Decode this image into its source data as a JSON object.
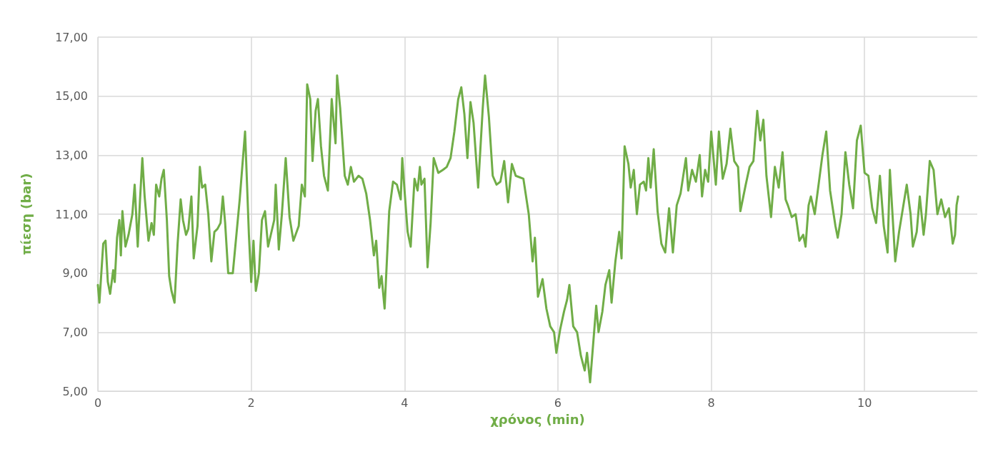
{
  "chart_data": {
    "type": "line",
    "xlabel": "χρόνος (min)",
    "ylabel": "πίεση (bar)",
    "xlim": [
      0,
      11.47
    ],
    "xticks": [
      0,
      2,
      4,
      6,
      8,
      10
    ],
    "ylim": [
      5,
      17
    ],
    "yticks": [
      {
        "value": 5,
        "label": "5,00"
      },
      {
        "value": 7,
        "label": "7,00"
      },
      {
        "value": 9,
        "label": "9,00"
      },
      {
        "value": 11,
        "label": "11,00"
      },
      {
        "value": 13,
        "label": "13,00"
      },
      {
        "value": 15,
        "label": "15,00"
      },
      {
        "value": 17,
        "label": "17,00"
      }
    ],
    "grid": true,
    "marker": "none",
    "line_style": "solid",
    "series": [
      {
        "color": "#70ad47",
        "x": [
          0,
          0.02,
          0.07,
          0.1,
          0.13,
          0.16,
          0.2,
          0.22,
          0.25,
          0.28,
          0.3,
          0.32,
          0.36,
          0.4,
          0.45,
          0.48,
          0.52,
          0.55,
          0.58,
          0.61,
          0.66,
          0.7,
          0.73,
          0.76,
          0.8,
          0.83,
          0.86,
          0.9,
          0.93,
          0.96,
          1.0,
          1.04,
          1.08,
          1.11,
          1.15,
          1.18,
          1.22,
          1.25,
          1.3,
          1.33,
          1.36,
          1.4,
          1.44,
          1.48,
          1.52,
          1.56,
          1.6,
          1.63,
          1.66,
          1.7,
          1.76,
          1.85,
          1.92,
          1.97,
          2.0,
          2.03,
          2.06,
          2.1,
          2.14,
          2.18,
          2.22,
          2.3,
          2.32,
          2.36,
          2.4,
          2.45,
          2.5,
          2.55,
          2.62,
          2.66,
          2.7,
          2.73,
          2.77,
          2.8,
          2.84,
          2.87,
          2.91,
          2.95,
          3.0,
          3.05,
          3.1,
          3.12,
          3.16,
          3.22,
          3.26,
          3.3,
          3.34,
          3.4,
          3.45,
          3.5,
          3.55,
          3.6,
          3.63,
          3.67,
          3.7,
          3.74,
          3.8,
          3.85,
          3.9,
          3.95,
          3.97,
          4.0,
          4.04,
          4.08,
          4.13,
          4.17,
          4.2,
          4.22,
          4.26,
          4.3,
          4.34,
          4.38,
          4.44,
          4.5,
          4.55,
          4.6,
          4.65,
          4.7,
          4.74,
          4.78,
          4.82,
          4.86,
          4.9,
          4.96,
          5.02,
          5.05,
          5.1,
          5.15,
          5.2,
          5.25,
          5.3,
          5.35,
          5.4,
          5.45,
          5.55,
          5.62,
          5.67,
          5.7,
          5.74,
          5.8,
          5.85,
          5.9,
          5.95,
          5.98,
          6.03,
          6.08,
          6.12,
          6.15,
          6.2,
          6.25,
          6.3,
          6.35,
          6.38,
          6.42,
          6.5,
          6.53,
          6.58,
          6.62,
          6.67,
          6.7,
          6.75,
          6.8,
          6.83,
          6.87,
          6.92,
          6.95,
          6.99,
          7.03,
          7.07,
          7.12,
          7.15,
          7.18,
          7.21,
          7.25,
          7.3,
          7.35,
          7.4,
          7.45,
          7.5,
          7.55,
          7.6,
          7.67,
          7.7,
          7.75,
          7.8,
          7.85,
          7.88,
          7.92,
          7.96,
          8.0,
          8.03,
          8.06,
          8.1,
          8.15,
          8.2,
          8.25,
          8.3,
          8.35,
          8.38,
          8.45,
          8.5,
          8.55,
          8.6,
          8.64,
          8.68,
          8.72,
          8.78,
          8.83,
          8.88,
          8.93,
          8.97,
          9.0,
          9.05,
          9.1,
          9.15,
          9.2,
          9.23,
          9.27,
          9.3,
          9.35,
          9.45,
          9.5,
          9.55,
          9.62,
          9.65,
          9.7,
          9.75,
          9.8,
          9.85,
          9.9,
          9.95,
          10.0,
          10.05,
          10.1,
          10.15,
          10.2,
          10.25,
          10.3,
          10.33,
          10.38,
          10.4,
          10.45,
          10.5,
          10.55,
          10.6,
          10.63,
          10.68,
          10.72,
          10.77,
          10.8,
          10.85,
          10.9,
          10.95,
          11.0,
          11.05,
          11.1,
          11.15,
          11.18,
          11.2,
          11.22
        ],
        "values": [
          8.6,
          8.0,
          10.0,
          10.1,
          8.7,
          8.3,
          9.1,
          8.7,
          10.2,
          10.8,
          9.6,
          11.1,
          9.9,
          10.3,
          11.0,
          12.0,
          9.9,
          11.5,
          12.9,
          11.6,
          10.1,
          10.7,
          10.3,
          12.0,
          11.6,
          12.2,
          12.5,
          10.8,
          8.9,
          8.4,
          8.0,
          10.0,
          11.5,
          10.8,
          10.3,
          10.5,
          11.6,
          9.5,
          10.6,
          12.6,
          11.9,
          12.0,
          11.0,
          9.4,
          10.4,
          10.5,
          10.7,
          11.6,
          10.7,
          9.0,
          9.0,
          11.5,
          13.8,
          10.3,
          8.7,
          10.1,
          8.4,
          9.0,
          10.8,
          11.1,
          9.9,
          10.8,
          12.0,
          9.8,
          11.0,
          12.9,
          10.9,
          10.1,
          10.6,
          12.0,
          11.6,
          15.4,
          14.9,
          12.8,
          14.5,
          14.9,
          13.3,
          12.3,
          11.8,
          14.9,
          13.4,
          15.7,
          14.6,
          12.3,
          12.0,
          12.6,
          12.1,
          12.3,
          12.2,
          11.7,
          10.8,
          9.6,
          10.1,
          8.5,
          8.9,
          7.8,
          11.1,
          12.1,
          12.0,
          11.5,
          12.9,
          11.8,
          10.4,
          9.9,
          12.2,
          11.8,
          12.6,
          12.0,
          12.2,
          9.2,
          10.7,
          12.9,
          12.4,
          12.5,
          12.6,
          12.9,
          13.8,
          14.9,
          15.3,
          14.4,
          12.9,
          14.8,
          14.1,
          11.9,
          14.6,
          15.7,
          14.3,
          12.3,
          12.0,
          12.1,
          12.8,
          11.4,
          12.7,
          12.3,
          12.2,
          11.0,
          9.4,
          10.2,
          8.2,
          8.8,
          7.8,
          7.2,
          7.0,
          6.3,
          7.1,
          7.7,
          8.1,
          8.6,
          7.2,
          7.0,
          6.2,
          5.7,
          6.3,
          5.3,
          7.9,
          7.0,
          7.7,
          8.6,
          9.1,
          8.0,
          9.4,
          10.4,
          9.5,
          13.3,
          12.7,
          11.9,
          12.5,
          11.0,
          12.0,
          12.1,
          11.8,
          12.9,
          11.9,
          13.2,
          11.1,
          10.0,
          9.7,
          11.2,
          9.7,
          11.3,
          11.7,
          12.9,
          11.8,
          12.5,
          12.1,
          13.0,
          11.6,
          12.5,
          12.1,
          13.8,
          12.9,
          12.0,
          13.8,
          12.2,
          12.7,
          13.9,
          12.8,
          12.6,
          11.1,
          12.0,
          12.6,
          12.8,
          14.5,
          13.5,
          14.2,
          12.3,
          10.9,
          12.6,
          11.9,
          13.1,
          11.5,
          11.3,
          10.9,
          11.0,
          10.1,
          10.3,
          9.9,
          11.3,
          11.6,
          11.0,
          13.0,
          13.8,
          11.8,
          10.6,
          10.2,
          11.0,
          13.1,
          12.0,
          11.2,
          13.5,
          14.0,
          12.4,
          12.3,
          11.2,
          10.7,
          12.3,
          10.6,
          9.7,
          12.5,
          10.3,
          9.4,
          10.4,
          11.2,
          12.0,
          11.0,
          9.9,
          10.4,
          11.6,
          10.3,
          11.0,
          12.8,
          12.5,
          11.0,
          11.5,
          10.9,
          11.2,
          10.0,
          10.3,
          11.3,
          11.6
        ]
      }
    ]
  }
}
